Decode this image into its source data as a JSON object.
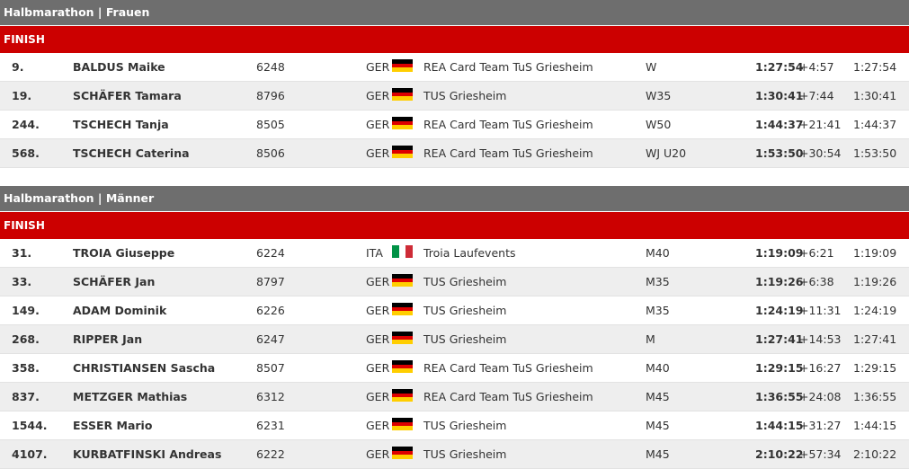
{
  "sections": [
    {
      "title": "Halbmarathon | Frauen",
      "status": "FINISH",
      "rows": [
        {
          "rank": "9.",
          "name": "BALDUS Maike",
          "bib": "6248",
          "nat": "GER",
          "flag": "de-flag-icon",
          "club": "REA Card Team TuS Griesheim",
          "cat": "W",
          "time": "1:27:54",
          "gap": "+4:57",
          "net": "1:27:54"
        },
        {
          "rank": "19.",
          "name": "SCHÄFER Tamara",
          "bib": "8796",
          "nat": "GER",
          "flag": "de-flag-icon",
          "club": "TUS Griesheim",
          "cat": "W35",
          "time": "1:30:41",
          "gap": "+7:44",
          "net": "1:30:41"
        },
        {
          "rank": "244.",
          "name": "TSCHECH Tanja",
          "bib": "8505",
          "nat": "GER",
          "flag": "de-flag-icon",
          "club": "REA Card Team TuS Griesheim",
          "cat": "W50",
          "time": "1:44:37",
          "gap": "+21:41",
          "net": "1:44:37"
        },
        {
          "rank": "568.",
          "name": "TSCHECH Caterina",
          "bib": "8506",
          "nat": "GER",
          "flag": "de-flag-icon",
          "club": "REA Card Team TuS Griesheim",
          "cat": "WJ U20",
          "time": "1:53:50",
          "gap": "+30:54",
          "net": "1:53:50"
        }
      ]
    },
    {
      "title": "Halbmarathon | Männer",
      "status": "FINISH",
      "rows": [
        {
          "rank": "31.",
          "name": "TROIA Giuseppe",
          "bib": "6224",
          "nat": "ITA",
          "flag": "it-flag-icon",
          "club": "Troia Laufevents",
          "cat": "M40",
          "time": "1:19:09",
          "gap": "+6:21",
          "net": "1:19:09"
        },
        {
          "rank": "33.",
          "name": "SCHÄFER Jan",
          "bib": "8797",
          "nat": "GER",
          "flag": "de-flag-icon",
          "club": "TUS Griesheim",
          "cat": "M35",
          "time": "1:19:26",
          "gap": "+6:38",
          "net": "1:19:26"
        },
        {
          "rank": "149.",
          "name": "ADAM Dominik",
          "bib": "6226",
          "nat": "GER",
          "flag": "de-flag-icon",
          "club": "TUS Griesheim",
          "cat": "M35",
          "time": "1:24:19",
          "gap": "+11:31",
          "net": "1:24:19"
        },
        {
          "rank": "268.",
          "name": "RIPPER Jan",
          "bib": "6247",
          "nat": "GER",
          "flag": "de-flag-icon",
          "club": "TUS Griesheim",
          "cat": "M",
          "time": "1:27:41",
          "gap": "+14:53",
          "net": "1:27:41"
        },
        {
          "rank": "358.",
          "name": "CHRISTIANSEN Sascha",
          "bib": "8507",
          "nat": "GER",
          "flag": "de-flag-icon",
          "club": "REA Card Team TuS Griesheim",
          "cat": "M40",
          "time": "1:29:15",
          "gap": "+16:27",
          "net": "1:29:15"
        },
        {
          "rank": "837.",
          "name": "METZGER Mathias",
          "bib": "6312",
          "nat": "GER",
          "flag": "de-flag-icon",
          "club": "REA Card Team TuS Griesheim",
          "cat": "M45",
          "time": "1:36:55",
          "gap": "+24:08",
          "net": "1:36:55"
        },
        {
          "rank": "1544.",
          "name": "ESSER Mario",
          "bib": "6231",
          "nat": "GER",
          "flag": "de-flag-icon",
          "club": "TUS Griesheim",
          "cat": "M45",
          "time": "1:44:15",
          "gap": "+31:27",
          "net": "1:44:15"
        },
        {
          "rank": "4107.",
          "name": "KURBATFINSKI Andreas",
          "bib": "6222",
          "nat": "GER",
          "flag": "de-flag-icon",
          "club": "TUS Griesheim",
          "cat": "M45",
          "time": "2:10:22",
          "gap": "+57:34",
          "net": "2:10:22"
        }
      ]
    }
  ],
  "colors": {
    "section_header": "#6e6e6e",
    "status_bar": "#cc0000",
    "row_alt": "#eeeeee"
  }
}
